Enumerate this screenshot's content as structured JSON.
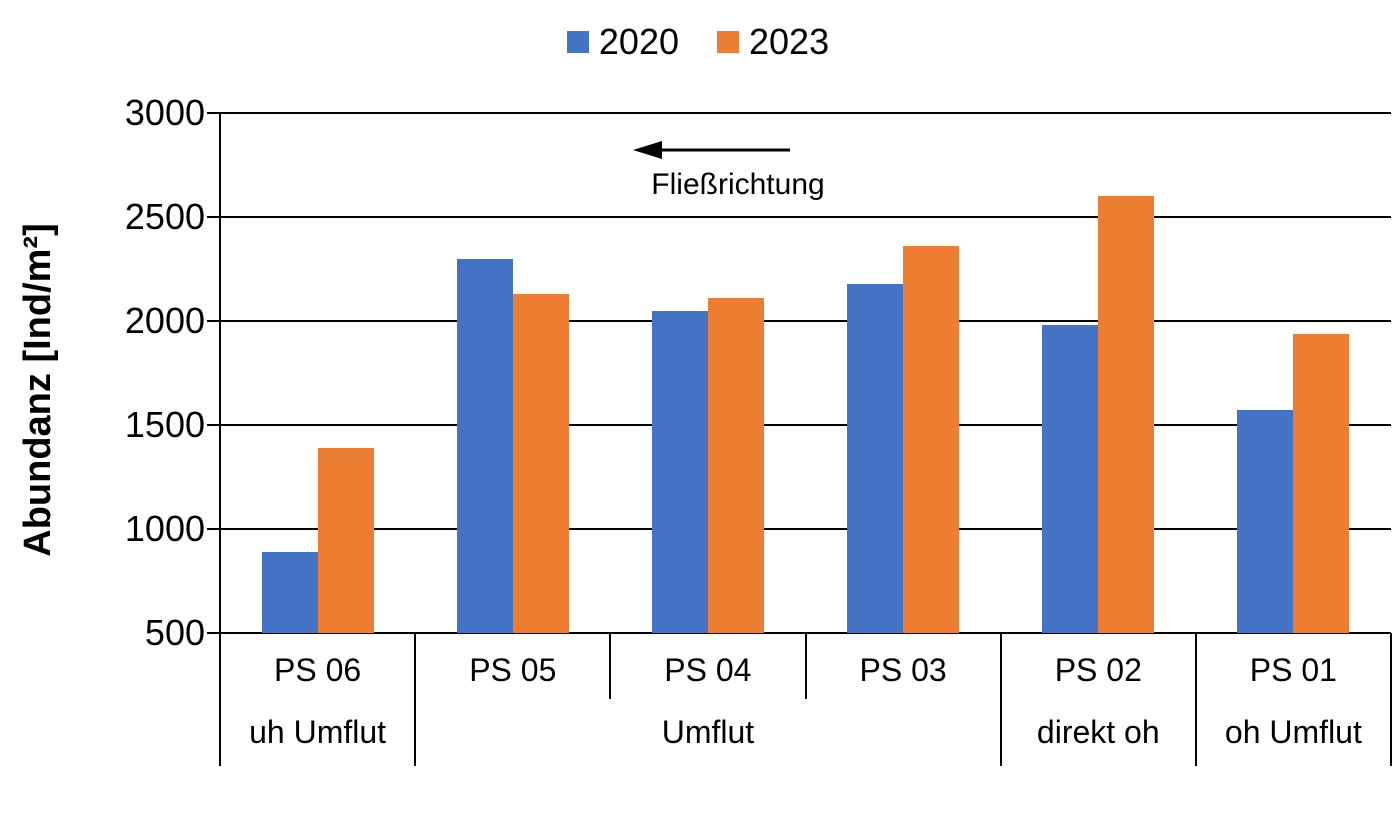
{
  "chart_data": {
    "type": "bar",
    "title": "",
    "categories": [
      "PS 06",
      "PS 05",
      "PS 04",
      "PS 03",
      "PS 02",
      "PS 01"
    ],
    "group_labels": [
      {
        "label": "uh Umflut",
        "span": 1
      },
      {
        "label": "Umflut",
        "span": 3
      },
      {
        "label": "direkt oh",
        "span": 1
      },
      {
        "label": "oh Umflut",
        "span": 1
      }
    ],
    "series": [
      {
        "name": "2020",
        "color": "#4472C4",
        "values": [
          890,
          2300,
          2050,
          2180,
          1980,
          1570
        ]
      },
      {
        "name": "2023",
        "color": "#ED7D31",
        "values": [
          1390,
          2130,
          2110,
          2360,
          2600,
          1940
        ]
      }
    ],
    "ylabel": "Abundanz [Ind/m²]",
    "ylim": [
      500,
      3000
    ],
    "yticks": [
      500,
      1000,
      1500,
      2000,
      2500,
      3000
    ],
    "grid": true,
    "legend_position": "top",
    "annotation": {
      "text": "Fließrichtung",
      "arrow_direction": "left"
    },
    "axis_color": "#000000",
    "background_color": "#ffffff"
  }
}
